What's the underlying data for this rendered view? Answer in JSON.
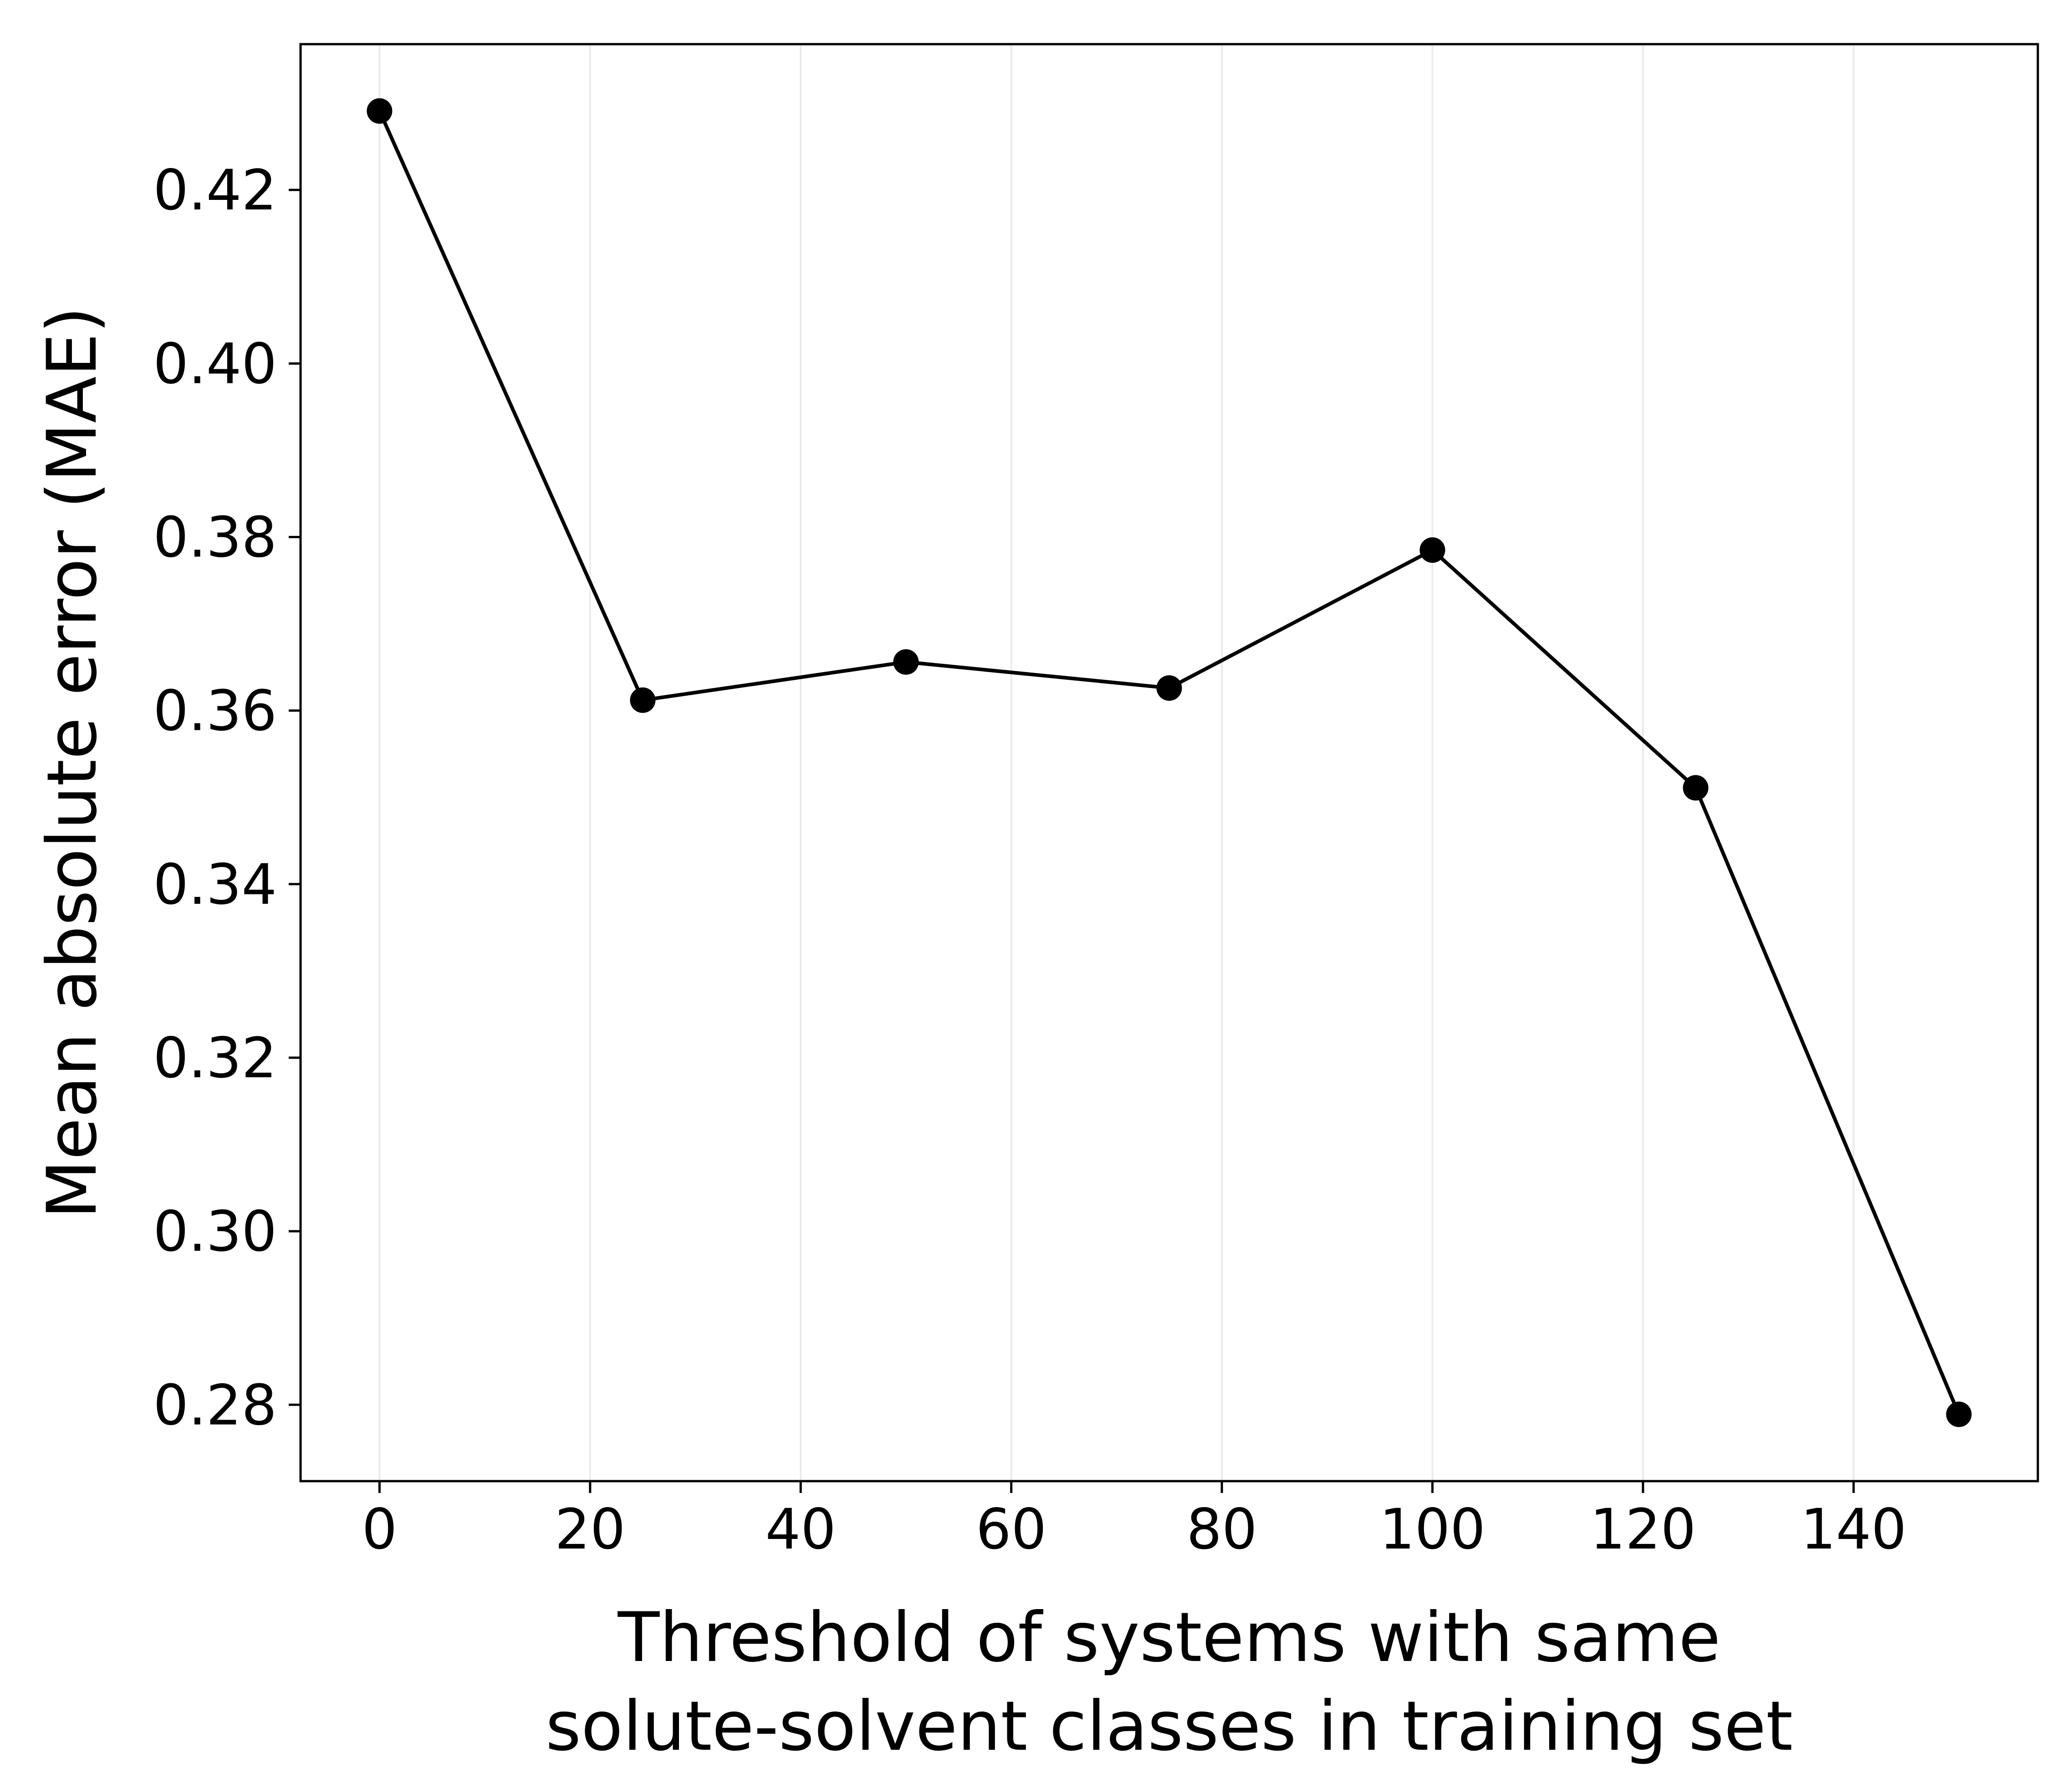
{
  "chart_data": {
    "type": "line",
    "title": "",
    "xlabel_lines": [
      "Threshold of systems with same",
      "solute-solvent classes in training set"
    ],
    "ylabel": "Mean absolute error (MAE)",
    "xlim": [
      -7.5,
      157.5
    ],
    "ylim": [
      0.2712,
      0.4368
    ],
    "x_ticks": [
      0,
      20,
      40,
      60,
      80,
      100,
      120,
      140
    ],
    "x_tick_labels": [
      "0",
      "20",
      "40",
      "60",
      "80",
      "100",
      "120",
      "140"
    ],
    "y_ticks": [
      0.28,
      0.3,
      0.32,
      0.34,
      0.36,
      0.38,
      0.4,
      0.42
    ],
    "y_tick_labels": [
      "0.28",
      "0.30",
      "0.32",
      "0.34",
      "0.36",
      "0.38",
      "0.40",
      "0.42"
    ],
    "grid": "vertical",
    "legend": "none",
    "series": [
      {
        "color": "#000000",
        "marker": "circle",
        "x": [
          0,
          25,
          50,
          75,
          100,
          125,
          150
        ],
        "y": [
          0.4291,
          0.3612,
          0.3656,
          0.3626,
          0.3785,
          0.3511,
          0.2789
        ]
      }
    ]
  }
}
